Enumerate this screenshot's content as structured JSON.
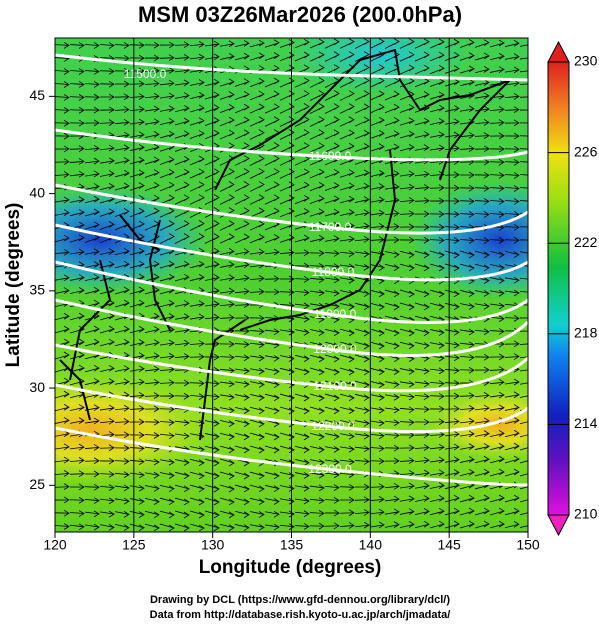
{
  "chart_data": {
    "type": "contour-map",
    "title": "MSM 03Z26Mar2026 (200.0hPa)",
    "x_label": "Longitude (degrees)",
    "y_label": "Latitude  (degrees)",
    "xlim": [
      120,
      150
    ],
    "xticks": [
      120,
      125,
      130,
      135,
      140,
      145,
      150
    ],
    "ylim": [
      22.6,
      48.0
    ],
    "yticks": [
      25,
      30,
      35,
      40,
      45
    ],
    "contour_labels": [
      "11500.0",
      "11600.0",
      "11700.0",
      "11800.0",
      "11900.0",
      "12000.0",
      "12100.0",
      "12200.0",
      "12300.0"
    ],
    "colorbar": {
      "lim": [
        210,
        230
      ],
      "ticks": [
        210,
        214,
        218,
        222,
        226,
        230
      ]
    },
    "footer": [
      "Drawing by DCL (https://www.gfd-dennou.org/library/dcl/)",
      "Data from http://database.rish.kyoto-u.ac.jp/arch/jmadata/"
    ]
  }
}
